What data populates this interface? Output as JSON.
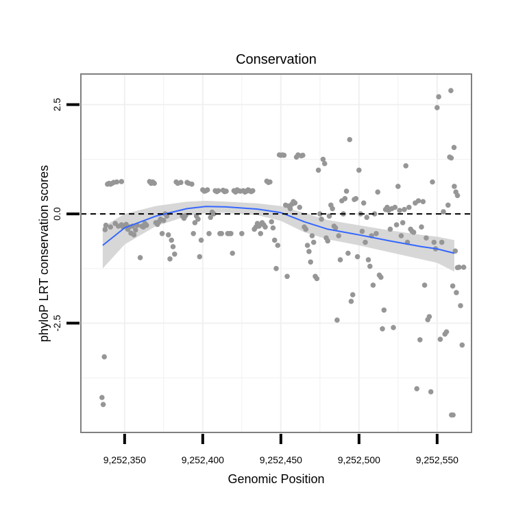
{
  "chart_data": {
    "type": "scatter",
    "title": "Conservation",
    "xlabel": "Genomic Position",
    "ylabel": "phyloP LRT conservation scores",
    "xlim": [
      9252322,
      9252572
    ],
    "ylim": [
      -5.0,
      3.2
    ],
    "x_ticks": [
      9252350,
      9252400,
      9252450,
      9252500,
      9252550
    ],
    "x_tick_labels": [
      "9,252,350",
      "9,252,400",
      "9,252,450",
      "9,252,500",
      "9,252,550"
    ],
    "y_ticks": [
      2.5,
      0.0,
      -2.5
    ],
    "y_tick_labels": [
      "2.5",
      "0.0",
      "-2.5"
    ],
    "x_minor_gridlines": [
      9252375,
      9252425,
      9252475,
      9252525
    ],
    "y_minor_gridlines": [
      1.25,
      -1.25,
      -3.75
    ],
    "reference_line_y": 0.0,
    "colors": {
      "points": "#969696",
      "smooth": "#3366ff",
      "band": "#d3d3d3",
      "grid": "#f0f0f0",
      "axis": "#7f7f7f"
    },
    "smooth": {
      "x": [
        9252336,
        9252350,
        9252370,
        9252390,
        9252402,
        9252415,
        9252435,
        9252450,
        9252465,
        9252480,
        9252500,
        9252520,
        9252540,
        9252550,
        9252561
      ],
      "y": [
        -0.72,
        -0.32,
        -0.05,
        0.12,
        0.17,
        0.16,
        0.11,
        0.03,
        -0.18,
        -0.35,
        -0.48,
        -0.62,
        -0.75,
        -0.8,
        -0.9
      ],
      "upper": [
        -0.3,
        0.0,
        0.18,
        0.28,
        0.3,
        0.28,
        0.24,
        0.18,
        0.02,
        -0.14,
        -0.26,
        -0.38,
        -0.48,
        -0.52,
        -0.6
      ],
      "lower": [
        -1.25,
        -0.7,
        -0.28,
        -0.05,
        0.02,
        0.03,
        -0.03,
        -0.16,
        -0.42,
        -0.58,
        -0.72,
        -0.88,
        -1.04,
        -1.12,
        -1.32
      ]
    },
    "points": [
      [
        9252335.5,
        -4.2
      ],
      [
        9252336.3,
        -4.36
      ],
      [
        9252337,
        -3.27
      ],
      [
        9252338,
        -0.26
      ],
      [
        9252337.5,
        -0.36
      ],
      [
        9252339,
        0.68
      ],
      [
        9252340,
        0.7
      ],
      [
        9252341,
        0.68
      ],
      [
        9252342,
        0.7
      ],
      [
        9252343,
        0.72
      ],
      [
        9252345,
        0.73
      ],
      [
        9252348,
        0.74
      ],
      [
        9252341,
        -0.3
      ],
      [
        9252344,
        -0.22
      ],
      [
        9252346,
        -0.28
      ],
      [
        9252348,
        -0.25
      ],
      [
        9252349,
        -0.3
      ],
      [
        9252351,
        -0.24
      ],
      [
        9252352,
        -0.35
      ],
      [
        9252353,
        -0.3
      ],
      [
        9252354,
        -0.44
      ],
      [
        9252355,
        -0.28
      ],
      [
        9252356,
        -0.48
      ],
      [
        9252357,
        -0.37
      ],
      [
        9252358,
        -0.26
      ],
      [
        9252360,
        -1.0
      ],
      [
        9252361,
        -0.28
      ],
      [
        9252362,
        -0.3
      ],
      [
        9252363,
        -0.22
      ],
      [
        9252364,
        -0.26
      ],
      [
        9252366,
        0.74
      ],
      [
        9252367,
        0.7
      ],
      [
        9252368,
        0.73
      ],
      [
        9252369,
        0.7
      ],
      [
        9252370,
        -0.2
      ],
      [
        9252371,
        -0.24
      ],
      [
        9252372,
        -0.18
      ],
      [
        9252373,
        -0.12
      ],
      [
        9252374,
        -0.45
      ],
      [
        9252375,
        -0.15
      ],
      [
        9252376,
        0.0
      ],
      [
        9252377,
        -0.05
      ],
      [
        9252378,
        -0.48
      ],
      [
        9252379,
        -1.03
      ],
      [
        9252380,
        -0.6
      ],
      [
        9252381,
        -0.75
      ],
      [
        9252382,
        -0.92
      ],
      [
        9252383,
        0.73
      ],
      [
        9252384,
        0.7
      ],
      [
        9252386,
        0.72
      ],
      [
        9252387,
        -0.05
      ],
      [
        9252388,
        -0.1
      ],
      [
        9252389,
        -0.04
      ],
      [
        9252390,
        0.72
      ],
      [
        9252391,
        0.7
      ],
      [
        9252393,
        0.68
      ],
      [
        9252394,
        -0.45
      ],
      [
        9252395,
        -0.2
      ],
      [
        9252396,
        -0.05
      ],
      [
        9252397,
        -0.12
      ],
      [
        9252398,
        -0.98
      ],
      [
        9252399,
        -0.6
      ],
      [
        9252400,
        0.55
      ],
      [
        9252401,
        0.52
      ],
      [
        9252402,
        0.53
      ],
      [
        9252403,
        0.55
      ],
      [
        9252404,
        -0.45
      ],
      [
        9252405,
        -0.08
      ],
      [
        9252406,
        0.04
      ],
      [
        9252407,
        0.0
      ],
      [
        9252408,
        0.53
      ],
      [
        9252409,
        0.51
      ],
      [
        9252410,
        0.53
      ],
      [
        9252411,
        -0.45
      ],
      [
        9252412,
        -0.45
      ],
      [
        9252413,
        0.54
      ],
      [
        9252414,
        0.51
      ],
      [
        9252415,
        0.52
      ],
      [
        9252416,
        -0.45
      ],
      [
        9252417,
        -0.45
      ],
      [
        9252418,
        -0.45
      ],
      [
        9252419,
        -0.9
      ],
      [
        9252420,
        0.53
      ],
      [
        9252421,
        0.5
      ],
      [
        9252422,
        0.55
      ],
      [
        9252423,
        0.53
      ],
      [
        9252424,
        0.52
      ],
      [
        9252425,
        -0.45
      ],
      [
        9252426,
        0.53
      ],
      [
        9252427,
        0.5
      ],
      [
        9252428,
        0.52
      ],
      [
        9252429,
        0.55
      ],
      [
        9252430,
        0.53
      ],
      [
        9252431,
        0.51
      ],
      [
        9252432,
        0.53
      ],
      [
        9252433,
        -0.35
      ],
      [
        9252434,
        -0.3
      ],
      [
        9252435,
        -0.22
      ],
      [
        9252436,
        -0.28
      ],
      [
        9252437,
        -0.45
      ],
      [
        9252438,
        -0.2
      ],
      [
        9252439,
        -0.25
      ],
      [
        9252440,
        -0.3
      ],
      [
        9252441,
        0.75
      ],
      [
        9252442,
        0.72
      ],
      [
        9252443,
        0.73
      ],
      [
        9252444,
        -0.18
      ],
      [
        9252445,
        -0.32
      ],
      [
        9252446,
        -0.6
      ],
      [
        9252447,
        -1.25
      ],
      [
        9252448,
        -0.72
      ],
      [
        9252449,
        1.35
      ],
      [
        9252450,
        1.34
      ],
      [
        9252451,
        1.35
      ],
      [
        9252452,
        1.34
      ],
      [
        9252453,
        0.2
      ],
      [
        9252454,
        -1.43
      ],
      [
        9252455,
        0.18
      ],
      [
        9252456,
        0.12
      ],
      [
        9252457,
        0.22
      ],
      [
        9252458,
        0.28
      ],
      [
        9252459,
        0.25
      ],
      [
        9252460,
        1.3
      ],
      [
        9252461,
        1.35
      ],
      [
        9252462,
        0.15
      ],
      [
        9252463,
        1.33
      ],
      [
        9252464,
        1.34
      ],
      [
        9252465,
        -0.3
      ],
      [
        9252466,
        -0.35
      ],
      [
        9252467,
        -0.72
      ],
      [
        9252468,
        -0.86
      ],
      [
        9252469,
        -1.1
      ],
      [
        9252470,
        -0.5
      ],
      [
        9252471,
        -0.65
      ],
      [
        9252472,
        -1.43
      ],
      [
        9252473,
        -1.48
      ],
      [
        9252474,
        1.0
      ],
      [
        9252475,
        0.0
      ],
      [
        9252476,
        -0.12
      ],
      [
        9252477,
        1.25
      ],
      [
        9252478,
        1.15
      ],
      [
        9252479,
        -0.55
      ],
      [
        9252480,
        -0.62
      ],
      [
        9252481,
        -0.05
      ],
      [
        9252482,
        0.2
      ],
      [
        9252483,
        0.12
      ],
      [
        9252484,
        -0.28
      ],
      [
        9252485,
        -0.32
      ],
      [
        9252486,
        -2.43
      ],
      [
        9252487,
        -0.5
      ],
      [
        9252488,
        -1.05
      ],
      [
        9252489,
        0.3
      ],
      [
        9252490,
        0.0
      ],
      [
        9252491,
        0.35
      ],
      [
        9252492,
        0.52
      ],
      [
        9252493,
        -0.9
      ],
      [
        9252494,
        1.7
      ],
      [
        9252495,
        -2.0
      ],
      [
        9252496,
        -1.85
      ],
      [
        9252497,
        0.33
      ],
      [
        9252498,
        0.35
      ],
      [
        9252499,
        -0.98
      ],
      [
        9252500,
        1.0
      ],
      [
        9252501,
        0.0
      ],
      [
        9252502,
        -0.4
      ],
      [
        9252503,
        0.25
      ],
      [
        9252504,
        -0.65
      ],
      [
        9252505,
        -0.08
      ],
      [
        9252506,
        -1.05
      ],
      [
        9252507,
        -1.2
      ],
      [
        9252508,
        -0.5
      ],
      [
        9252509,
        -1.63
      ],
      [
        9252510,
        0.0
      ],
      [
        9252511,
        -0.45
      ],
      [
        9252512,
        0.5
      ],
      [
        9252513,
        -1.4
      ],
      [
        9252514,
        -1.45
      ],
      [
        9252515,
        -2.63
      ],
      [
        9252516,
        -2.2
      ],
      [
        9252517,
        0.1
      ],
      [
        9252518,
        0.15
      ],
      [
        9252519,
        0.08
      ],
      [
        9252520,
        -0.35
      ],
      [
        9252521,
        0.12
      ],
      [
        9252522,
        -2.6
      ],
      [
        9252523,
        0.15
      ],
      [
        9252524,
        -0.25
      ],
      [
        9252525,
        0.63
      ],
      [
        9252526,
        0.08
      ],
      [
        9252527,
        -0.5
      ],
      [
        9252528,
        -0.2
      ],
      [
        9252529,
        0.1
      ],
      [
        9252530,
        1.1
      ],
      [
        9252531,
        -0.65
      ],
      [
        9252532,
        0.15
      ],
      [
        9252533,
        -0.35
      ],
      [
        9252534,
        -0.4
      ],
      [
        9252535,
        -0.42
      ],
      [
        9252536,
        0.25
      ],
      [
        9252537,
        -4.0
      ],
      [
        9252538,
        0.3
      ],
      [
        9252539,
        -2.88
      ],
      [
        9252540,
        -0.3
      ],
      [
        9252541,
        0.28
      ],
      [
        9252542,
        -1.63
      ],
      [
        9252543,
        -0.55
      ],
      [
        9252544,
        -2.42
      ],
      [
        9252545,
        -2.35
      ],
      [
        9252546,
        -4.07
      ],
      [
        9252547,
        0.73
      ],
      [
        9252548,
        -0.65
      ],
      [
        9252549,
        -0.8
      ],
      [
        9252550,
        2.43
      ],
      [
        9252551,
        2.68
      ],
      [
        9252552,
        -2.87
      ],
      [
        9252553,
        -0.65
      ],
      [
        9252554,
        0.05
      ],
      [
        9252555,
        -2.75
      ],
      [
        9252556,
        -2.7
      ],
      [
        9252557,
        0.2
      ],
      [
        9252558,
        1.3
      ],
      [
        9252559,
        1.28
      ],
      [
        9252560,
        -1.65
      ],
      [
        9252561,
        0.63
      ],
      [
        9252562,
        0.5
      ],
      [
        9252563,
        -1.23
      ],
      [
        9252564,
        -1.22
      ],
      [
        9252565,
        -2.1
      ],
      [
        9252566,
        -3.0
      ],
      [
        9252567,
        -1.22
      ],
      [
        9252558.8,
        2.82
      ],
      [
        9252559.2,
        -4.6
      ],
      [
        9252560.2,
        -4.6
      ],
      [
        9252560.8,
        1.52
      ],
      [
        9252561.6,
        -0.85
      ],
      [
        9252562.3,
        -1.8
      ],
      [
        9252563,
        0.42
      ]
    ]
  }
}
